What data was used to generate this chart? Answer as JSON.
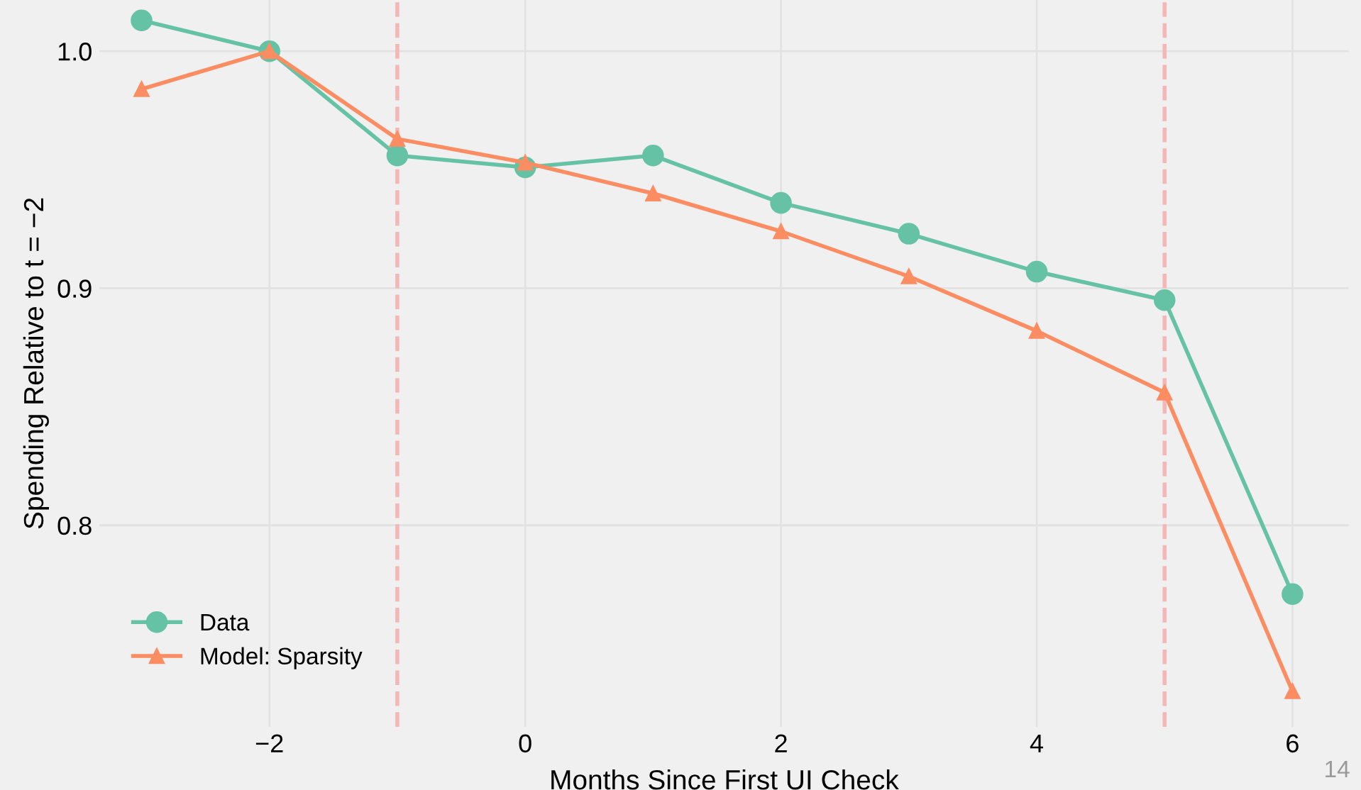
{
  "chart_data": {
    "type": "line",
    "xlabel": "Months Since First UI Check",
    "ylabel": "Spending Relative to t = −2",
    "x": [
      -3,
      -2,
      -1,
      0,
      1,
      2,
      3,
      4,
      5,
      6
    ],
    "series": [
      {
        "name": "Data",
        "color": "#66c2a5",
        "marker": "circle",
        "values": [
          1.013,
          1.0,
          0.956,
          0.951,
          0.956,
          0.936,
          0.923,
          0.907,
          0.895,
          0.771
        ]
      },
      {
        "name": "Model: Sparsity",
        "color": "#fc8d62",
        "marker": "triangle",
        "values": [
          0.984,
          1.0,
          0.963,
          0.953,
          0.94,
          0.924,
          0.905,
          0.882,
          0.856,
          0.73
        ]
      }
    ],
    "xlim": [
      -3.33,
      6.44
    ],
    "ylim": [
      0.715,
      1.0216
    ],
    "xticks": [
      {
        "value": -2,
        "label": "−2"
      },
      0,
      2,
      4,
      6
    ],
    "yticks": [
      0.8,
      0.9,
      {
        "value": 1,
        "label": "1.0"
      }
    ],
    "ref_lines": [
      {
        "axis": "x",
        "value": -1,
        "color": "#f4b6b6",
        "line_style": "dashed"
      },
      {
        "axis": "x",
        "value": 5,
        "color": "#f4b6b6",
        "line_style": "dashed"
      }
    ],
    "grid": true,
    "legend": "bottom left",
    "line_style": "solid",
    "annotations": [
      "14"
    ]
  }
}
